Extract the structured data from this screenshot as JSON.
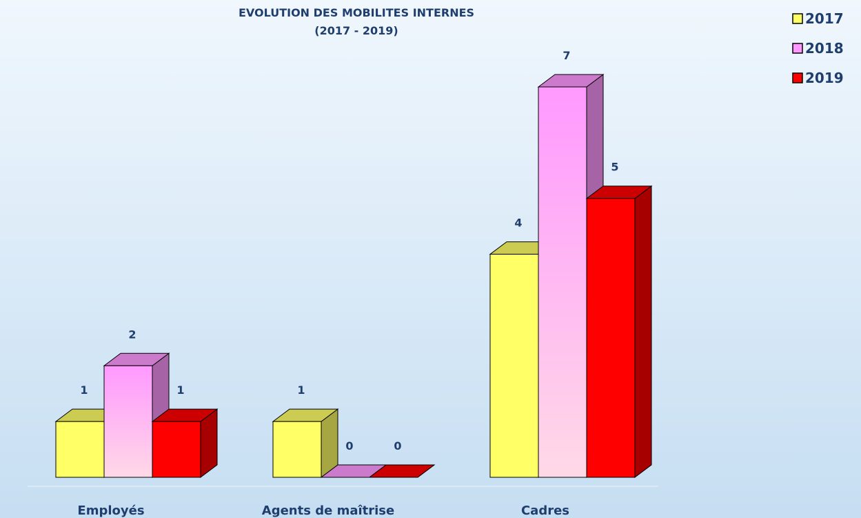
{
  "chart_data": {
    "type": "bar3d",
    "title": "EVOLUTION DES MOBILITES INTERNES",
    "subtitle": "(2017 - 2019)",
    "categories": [
      "Employés",
      "Agents de maîtrise",
      "Cadres"
    ],
    "series": [
      {
        "name": "2017",
        "color": "#ffff66",
        "values": [
          1,
          1,
          4
        ]
      },
      {
        "name": "2018",
        "color": "#ff99ff",
        "values": [
          2,
          0,
          7
        ]
      },
      {
        "name": "2019",
        "color": "#ff0000",
        "values": [
          1,
          0,
          5
        ]
      }
    ],
    "legend": "top-right"
  }
}
